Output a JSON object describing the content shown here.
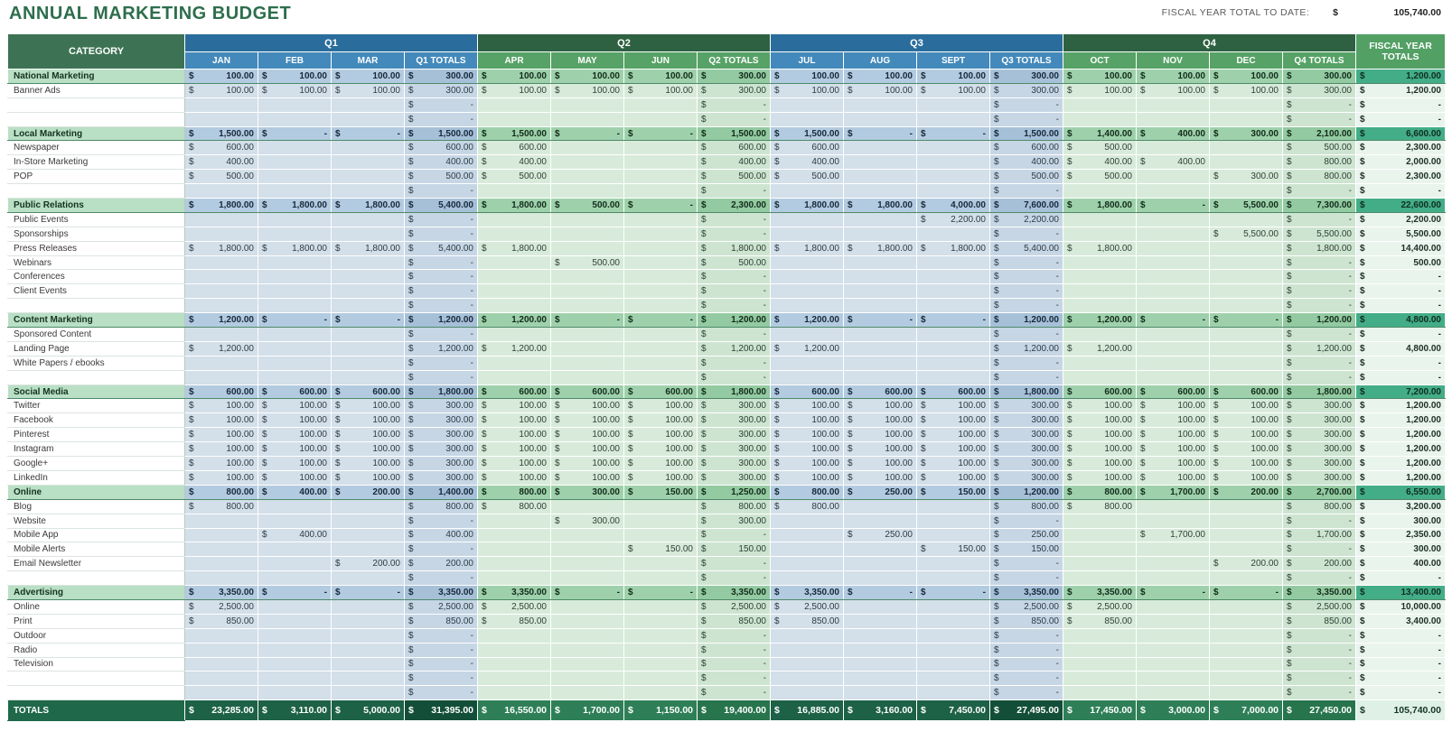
{
  "page": {
    "title": "ANNUAL MARKETING BUDGET",
    "fiscal_total_label": "FISCAL YEAR TOTAL TO DATE:",
    "fiscal_currency": "$",
    "fiscal_total_value": "105,740.00",
    "colors": {
      "title_green": "#2d6e4c",
      "q_blue_band": "#2a6d9c",
      "q_green_band": "#2e6141",
      "section_teal": "#43ad88",
      "totals_dark_green": "#1d6147"
    }
  },
  "table": {
    "category_header": "CATEGORY",
    "fy_header": "FISCAL YEAR TOTALS",
    "quarters": [
      {
        "label": "Q1",
        "theme": "blue",
        "months": [
          "JAN",
          "FEB",
          "MAR"
        ],
        "total_label": "Q1 TOTALS"
      },
      {
        "label": "Q2",
        "theme": "green",
        "months": [
          "APR",
          "MAY",
          "JUN"
        ],
        "total_label": "Q2 TOTALS"
      },
      {
        "label": "Q3",
        "theme": "blue",
        "months": [
          "JUL",
          "AUG",
          "SEPT"
        ],
        "total_label": "Q3 TOTALS"
      },
      {
        "label": "Q4",
        "theme": "green",
        "months": [
          "OCT",
          "NOV",
          "DEC"
        ],
        "total_label": "Q4 TOTALS"
      }
    ],
    "rows": [
      {
        "label": "National Marketing",
        "type": "section",
        "cells": [
          "100.00",
          "100.00",
          "100.00",
          "300.00",
          "100.00",
          "100.00",
          "100.00",
          "300.00",
          "100.00",
          "100.00",
          "100.00",
          "300.00",
          "100.00",
          "100.00",
          "100.00",
          "300.00"
        ],
        "fy": "1,200.00"
      },
      {
        "label": "Banner Ads",
        "type": "detail",
        "cells": [
          "100.00",
          "100.00",
          "100.00",
          "300.00",
          "100.00",
          "100.00",
          "100.00",
          "300.00",
          "100.00",
          "100.00",
          "100.00",
          "300.00",
          "100.00",
          "100.00",
          "100.00",
          "300.00"
        ],
        "fy": "1,200.00"
      },
      {
        "label": "",
        "type": "blank",
        "cells": [
          "",
          "",
          "",
          "-",
          "",
          "",
          "",
          "-",
          "",
          "",
          "",
          "-",
          "",
          "",
          "",
          "-"
        ],
        "fy": "-"
      },
      {
        "label": "",
        "type": "blank",
        "cells": [
          "",
          "",
          "",
          "-",
          "",
          "",
          "",
          "-",
          "",
          "",
          "",
          "-",
          "",
          "",
          "",
          "-"
        ],
        "fy": "-"
      },
      {
        "label": "Local Marketing",
        "type": "section",
        "cells": [
          "1,500.00",
          "-",
          "-",
          "1,500.00",
          "1,500.00",
          "-",
          "-",
          "1,500.00",
          "1,500.00",
          "-",
          "-",
          "1,500.00",
          "1,400.00",
          "400.00",
          "300.00",
          "2,100.00"
        ],
        "fy": "6,600.00"
      },
      {
        "label": "Newspaper",
        "type": "detail",
        "cells": [
          "600.00",
          "",
          "",
          "600.00",
          "600.00",
          "",
          "",
          "600.00",
          "600.00",
          "",
          "",
          "600.00",
          "500.00",
          "",
          "",
          "500.00"
        ],
        "fy": "2,300.00"
      },
      {
        "label": "In-Store Marketing",
        "type": "detail",
        "cells": [
          "400.00",
          "",
          "",
          "400.00",
          "400.00",
          "",
          "",
          "400.00",
          "400.00",
          "",
          "",
          "400.00",
          "400.00",
          "400.00",
          "",
          "800.00"
        ],
        "fy": "2,000.00"
      },
      {
        "label": "POP",
        "type": "detail",
        "cells": [
          "500.00",
          "",
          "",
          "500.00",
          "500.00",
          "",
          "",
          "500.00",
          "500.00",
          "",
          "",
          "500.00",
          "500.00",
          "",
          "300.00",
          "800.00"
        ],
        "fy": "2,300.00"
      },
      {
        "label": "",
        "type": "blank",
        "cells": [
          "",
          "",
          "",
          "-",
          "",
          "",
          "",
          "-",
          "",
          "",
          "",
          "-",
          "",
          "",
          "",
          "-"
        ],
        "fy": "-"
      },
      {
        "label": "Public Relations",
        "type": "section",
        "cells": [
          "1,800.00",
          "1,800.00",
          "1,800.00",
          "5,400.00",
          "1,800.00",
          "500.00",
          "-",
          "2,300.00",
          "1,800.00",
          "1,800.00",
          "4,000.00",
          "7,600.00",
          "1,800.00",
          "-",
          "5,500.00",
          "7,300.00"
        ],
        "fy": "22,600.00"
      },
      {
        "label": "Public Events",
        "type": "detail",
        "cells": [
          "",
          "",
          "",
          "-",
          "",
          "",
          "",
          "-",
          "",
          "",
          "2,200.00",
          "2,200.00",
          "",
          "",
          "",
          "-"
        ],
        "fy": "2,200.00"
      },
      {
        "label": "Sponsorships",
        "type": "detail",
        "cells": [
          "",
          "",
          "",
          "-",
          "",
          "",
          "",
          "-",
          "",
          "",
          "",
          "-",
          "",
          "",
          "5,500.00",
          "5,500.00"
        ],
        "fy": "5,500.00"
      },
      {
        "label": "Press Releases",
        "type": "detail",
        "cells": [
          "1,800.00",
          "1,800.00",
          "1,800.00",
          "5,400.00",
          "1,800.00",
          "",
          "",
          "1,800.00",
          "1,800.00",
          "1,800.00",
          "1,800.00",
          "5,400.00",
          "1,800.00",
          "",
          "",
          "1,800.00"
        ],
        "fy": "14,400.00"
      },
      {
        "label": "Webinars",
        "type": "detail",
        "cells": [
          "",
          "",
          "",
          "-",
          "",
          "500.00",
          "",
          "500.00",
          "",
          "",
          "",
          "-",
          "",
          "",
          "",
          "-"
        ],
        "fy": "500.00"
      },
      {
        "label": "Conferences",
        "type": "detail",
        "cells": [
          "",
          "",
          "",
          "-",
          "",
          "",
          "",
          "-",
          "",
          "",
          "",
          "-",
          "",
          "",
          "",
          "-"
        ],
        "fy": "-"
      },
      {
        "label": "Client Events",
        "type": "detail",
        "cells": [
          "",
          "",
          "",
          "-",
          "",
          "",
          "",
          "-",
          "",
          "",
          "",
          "-",
          "",
          "",
          "",
          "-"
        ],
        "fy": "-"
      },
      {
        "label": "",
        "type": "blank",
        "cells": [
          "",
          "",
          "",
          "-",
          "",
          "",
          "",
          "-",
          "",
          "",
          "",
          "-",
          "",
          "",
          "",
          "-"
        ],
        "fy": "-"
      },
      {
        "label": "Content Marketing",
        "type": "section",
        "cells": [
          "1,200.00",
          "-",
          "-",
          "1,200.00",
          "1,200.00",
          "-",
          "-",
          "1,200.00",
          "1,200.00",
          "-",
          "-",
          "1,200.00",
          "1,200.00",
          "-",
          "-",
          "1,200.00"
        ],
        "fy": "4,800.00"
      },
      {
        "label": "Sponsored Content",
        "type": "detail",
        "cells": [
          "",
          "",
          "",
          "-",
          "",
          "",
          "",
          "-",
          "",
          "",
          "",
          "-",
          "",
          "",
          "",
          "-"
        ],
        "fy": "-"
      },
      {
        "label": "Landing Page",
        "type": "detail",
        "cells": [
          "1,200.00",
          "",
          "",
          "1,200.00",
          "1,200.00",
          "",
          "",
          "1,200.00",
          "1,200.00",
          "",
          "",
          "1,200.00",
          "1,200.00",
          "",
          "",
          "1,200.00"
        ],
        "fy": "4,800.00"
      },
      {
        "label": "White Papers / ebooks",
        "type": "detail",
        "cells": [
          "",
          "",
          "",
          "-",
          "",
          "",
          "",
          "-",
          "",
          "",
          "",
          "-",
          "",
          "",
          "",
          "-"
        ],
        "fy": "-"
      },
      {
        "label": "",
        "type": "blank",
        "cells": [
          "",
          "",
          "",
          "-",
          "",
          "",
          "",
          "-",
          "",
          "",
          "",
          "-",
          "",
          "",
          "",
          "-"
        ],
        "fy": "-"
      },
      {
        "label": "Social Media",
        "type": "section",
        "cells": [
          "600.00",
          "600.00",
          "600.00",
          "1,800.00",
          "600.00",
          "600.00",
          "600.00",
          "1,800.00",
          "600.00",
          "600.00",
          "600.00",
          "1,800.00",
          "600.00",
          "600.00",
          "600.00",
          "1,800.00"
        ],
        "fy": "7,200.00"
      },
      {
        "label": "Twitter",
        "type": "detail",
        "cells": [
          "100.00",
          "100.00",
          "100.00",
          "300.00",
          "100.00",
          "100.00",
          "100.00",
          "300.00",
          "100.00",
          "100.00",
          "100.00",
          "300.00",
          "100.00",
          "100.00",
          "100.00",
          "300.00"
        ],
        "fy": "1,200.00"
      },
      {
        "label": "Facebook",
        "type": "detail",
        "cells": [
          "100.00",
          "100.00",
          "100.00",
          "300.00",
          "100.00",
          "100.00",
          "100.00",
          "300.00",
          "100.00",
          "100.00",
          "100.00",
          "300.00",
          "100.00",
          "100.00",
          "100.00",
          "300.00"
        ],
        "fy": "1,200.00"
      },
      {
        "label": "Pinterest",
        "type": "detail",
        "cells": [
          "100.00",
          "100.00",
          "100.00",
          "300.00",
          "100.00",
          "100.00",
          "100.00",
          "300.00",
          "100.00",
          "100.00",
          "100.00",
          "300.00",
          "100.00",
          "100.00",
          "100.00",
          "300.00"
        ],
        "fy": "1,200.00"
      },
      {
        "label": "Instagram",
        "type": "detail",
        "cells": [
          "100.00",
          "100.00",
          "100.00",
          "300.00",
          "100.00",
          "100.00",
          "100.00",
          "300.00",
          "100.00",
          "100.00",
          "100.00",
          "300.00",
          "100.00",
          "100.00",
          "100.00",
          "300.00"
        ],
        "fy": "1,200.00"
      },
      {
        "label": "Google+",
        "type": "detail",
        "cells": [
          "100.00",
          "100.00",
          "100.00",
          "300.00",
          "100.00",
          "100.00",
          "100.00",
          "300.00",
          "100.00",
          "100.00",
          "100.00",
          "300.00",
          "100.00",
          "100.00",
          "100.00",
          "300.00"
        ],
        "fy": "1,200.00"
      },
      {
        "label": "LinkedIn",
        "type": "detail",
        "cells": [
          "100.00",
          "100.00",
          "100.00",
          "300.00",
          "100.00",
          "100.00",
          "100.00",
          "300.00",
          "100.00",
          "100.00",
          "100.00",
          "300.00",
          "100.00",
          "100.00",
          "100.00",
          "300.00"
        ],
        "fy": "1,200.00"
      },
      {
        "label": "Online",
        "type": "section",
        "cells": [
          "800.00",
          "400.00",
          "200.00",
          "1,400.00",
          "800.00",
          "300.00",
          "150.00",
          "1,250.00",
          "800.00",
          "250.00",
          "150.00",
          "1,200.00",
          "800.00",
          "1,700.00",
          "200.00",
          "2,700.00"
        ],
        "fy": "6,550.00"
      },
      {
        "label": "Blog",
        "type": "detail",
        "cells": [
          "800.00",
          "",
          "",
          "800.00",
          "800.00",
          "",
          "",
          "800.00",
          "800.00",
          "",
          "",
          "800.00",
          "800.00",
          "",
          "",
          "800.00"
        ],
        "fy": "3,200.00"
      },
      {
        "label": "Website",
        "type": "detail",
        "cells": [
          "",
          "",
          "",
          "-",
          "",
          "300.00",
          "",
          "300.00",
          "",
          "",
          "",
          "-",
          "",
          "",
          "",
          "-"
        ],
        "fy": "300.00"
      },
      {
        "label": "Mobile App",
        "type": "detail",
        "cells": [
          "",
          "400.00",
          "",
          "400.00",
          "",
          "",
          "",
          "-",
          "",
          "250.00",
          "",
          "250.00",
          "",
          "1,700.00",
          "",
          "1,700.00"
        ],
        "fy": "2,350.00"
      },
      {
        "label": "Mobile Alerts",
        "type": "detail",
        "cells": [
          "",
          "",
          "",
          "-",
          "",
          "",
          "150.00",
          "150.00",
          "",
          "",
          "150.00",
          "150.00",
          "",
          "",
          "",
          "-"
        ],
        "fy": "300.00"
      },
      {
        "label": "Email Newsletter",
        "type": "detail",
        "cells": [
          "",
          "",
          "200.00",
          "200.00",
          "",
          "",
          "",
          "-",
          "",
          "",
          "",
          "-",
          "",
          "",
          "200.00",
          "200.00"
        ],
        "fy": "400.00"
      },
      {
        "label": "",
        "type": "blank",
        "cells": [
          "",
          "",
          "",
          "-",
          "",
          "",
          "",
          "-",
          "",
          "",
          "",
          "-",
          "",
          "",
          "",
          "-"
        ],
        "fy": "-"
      },
      {
        "label": "Advertising",
        "type": "section",
        "cells": [
          "3,350.00",
          "-",
          "-",
          "3,350.00",
          "3,350.00",
          "-",
          "-",
          "3,350.00",
          "3,350.00",
          "-",
          "-",
          "3,350.00",
          "3,350.00",
          "-",
          "-",
          "3,350.00"
        ],
        "fy": "13,400.00"
      },
      {
        "label": "Online",
        "type": "detail",
        "cells": [
          "2,500.00",
          "",
          "",
          "2,500.00",
          "2,500.00",
          "",
          "",
          "2,500.00",
          "2,500.00",
          "",
          "",
          "2,500.00",
          "2,500.00",
          "",
          "",
          "2,500.00"
        ],
        "fy": "10,000.00"
      },
      {
        "label": "Print",
        "type": "detail",
        "cells": [
          "850.00",
          "",
          "",
          "850.00",
          "850.00",
          "",
          "",
          "850.00",
          "850.00",
          "",
          "",
          "850.00",
          "850.00",
          "",
          "",
          "850.00"
        ],
        "fy": "3,400.00"
      },
      {
        "label": "Outdoor",
        "type": "detail",
        "cells": [
          "",
          "",
          "",
          "-",
          "",
          "",
          "",
          "-",
          "",
          "",
          "",
          "-",
          "",
          "",
          "",
          "-"
        ],
        "fy": "-"
      },
      {
        "label": "Radio",
        "type": "detail",
        "cells": [
          "",
          "",
          "",
          "-",
          "",
          "",
          "",
          "-",
          "",
          "",
          "",
          "-",
          "",
          "",
          "",
          "-"
        ],
        "fy": "-"
      },
      {
        "label": "Television",
        "type": "detail",
        "cells": [
          "",
          "",
          "",
          "-",
          "",
          "",
          "",
          "-",
          "",
          "",
          "",
          "-",
          "",
          "",
          "",
          "-"
        ],
        "fy": "-"
      },
      {
        "label": "",
        "type": "blank",
        "cells": [
          "",
          "",
          "",
          "-",
          "",
          "",
          "",
          "-",
          "",
          "",
          "",
          "-",
          "",
          "",
          "",
          "-"
        ],
        "fy": "-"
      },
      {
        "label": "",
        "type": "blank",
        "cells": [
          "",
          "",
          "",
          "-",
          "",
          "",
          "",
          "-",
          "",
          "",
          "",
          "-",
          "",
          "",
          "",
          "-"
        ],
        "fy": "-"
      }
    ],
    "totals": {
      "label": "TOTALS",
      "cells": [
        "23,285.00",
        "3,110.00",
        "5,000.00",
        "31,395.00",
        "16,550.00",
        "1,700.00",
        "1,150.00",
        "19,400.00",
        "16,885.00",
        "3,160.00",
        "7,450.00",
        "27,495.00",
        "17,450.00",
        "3,000.00",
        "7,000.00",
        "27,450.00"
      ],
      "fy": "105,740.00"
    }
  }
}
